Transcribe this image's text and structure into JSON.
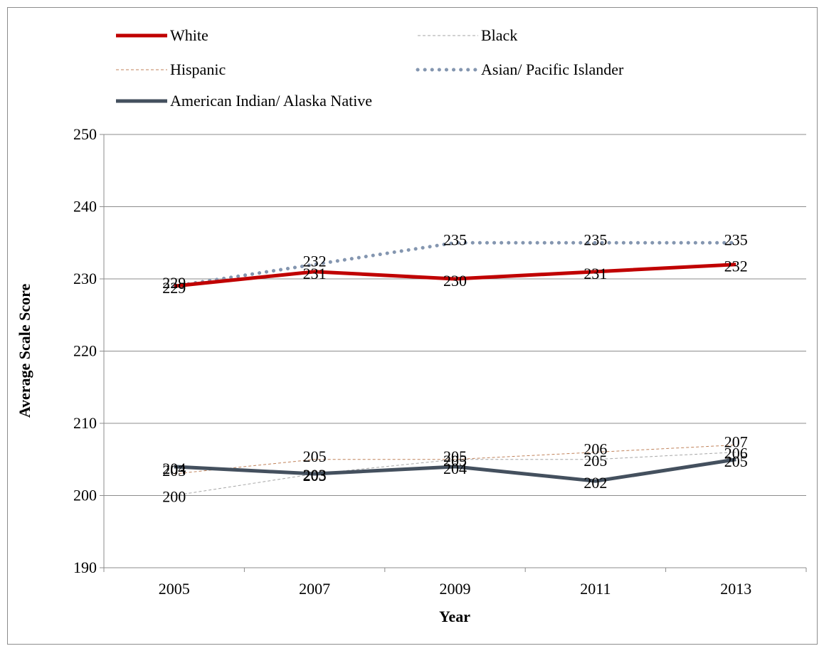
{
  "chart_data": {
    "type": "line",
    "title": "",
    "xlabel": "Year",
    "ylabel": "Average Scale Score",
    "categories": [
      "2005",
      "2007",
      "2009",
      "2011",
      "2013"
    ],
    "ylim": [
      190,
      250
    ],
    "yticks": [
      190,
      200,
      210,
      220,
      230,
      240,
      250
    ],
    "grid": true,
    "legend_position": "top",
    "series": [
      {
        "name": "White",
        "values": [
          229,
          231,
          230,
          231,
          232
        ],
        "color": "#c00000",
        "style": "solid-thick"
      },
      {
        "name": "Black",
        "values": [
          200,
          203,
          205,
          205,
          206
        ],
        "color": "#a6a6a6",
        "style": "dashed-thin"
      },
      {
        "name": "Hispanic",
        "values": [
          203,
          205,
          205,
          206,
          207
        ],
        "color": "#c0825a",
        "style": "dashed-thin"
      },
      {
        "name": "Asian/ Pacific Islander",
        "values": [
          229,
          232,
          235,
          235,
          235
        ],
        "color": "#8496b0",
        "style": "dotted"
      },
      {
        "name": "American Indian/ Alaska Native",
        "values": [
          204,
          203,
          204,
          202,
          205
        ],
        "color": "#44505e",
        "style": "solid-thick"
      }
    ]
  }
}
